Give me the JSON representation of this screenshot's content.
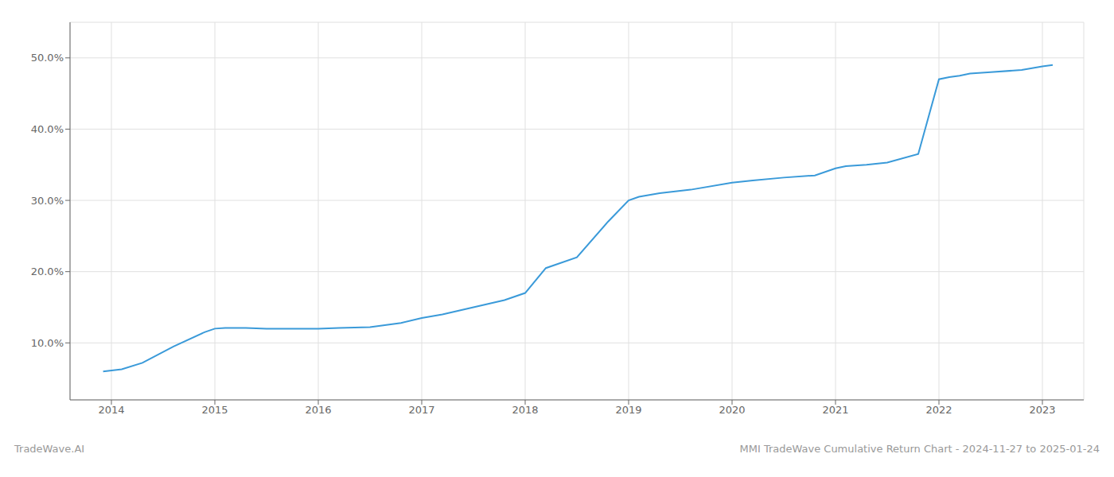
{
  "chart_data": {
    "type": "line",
    "x": [
      2013.92,
      2014.1,
      2014.3,
      2014.6,
      2014.9,
      2015.0,
      2015.1,
      2015.3,
      2015.5,
      2015.7,
      2016.0,
      2016.2,
      2016.5,
      2016.8,
      2017.0,
      2017.2,
      2017.5,
      2017.8,
      2018.0,
      2018.2,
      2018.5,
      2018.8,
      2019.0,
      2019.1,
      2019.3,
      2019.6,
      2020.0,
      2020.2,
      2020.5,
      2020.8,
      2021.0,
      2021.1,
      2021.3,
      2021.5,
      2021.8,
      2022.0,
      2022.1,
      2022.2,
      2022.3,
      2022.5,
      2022.8,
      2023.0,
      2023.1
    ],
    "values": [
      6.0,
      6.3,
      7.2,
      9.5,
      11.5,
      12.0,
      12.1,
      12.1,
      12.0,
      12.0,
      12.0,
      12.1,
      12.2,
      12.8,
      13.5,
      14.0,
      15.0,
      16.0,
      17.0,
      20.5,
      22.0,
      27.0,
      30.0,
      30.5,
      31.0,
      31.5,
      32.5,
      32.8,
      33.2,
      33.5,
      34.5,
      34.8,
      35.0,
      35.3,
      36.5,
      47.0,
      47.3,
      47.5,
      47.8,
      48.0,
      48.3,
      48.8,
      49.0
    ],
    "color": "#3a9ad9",
    "xlim": [
      2013.6,
      2023.4
    ],
    "ylim": [
      2.0,
      55.0
    ],
    "xticks": [
      2014,
      2015,
      2016,
      2017,
      2018,
      2019,
      2020,
      2021,
      2022,
      2023
    ],
    "yticks": [
      {
        "value": 10.0,
        "label": "10.0%"
      },
      {
        "value": 20.0,
        "label": "20.0%"
      },
      {
        "value": 30.0,
        "label": "30.0%"
      },
      {
        "value": 40.0,
        "label": "40.0%"
      },
      {
        "value": 50.0,
        "label": "50.0%"
      }
    ],
    "grid": true,
    "annotations": [
      "TradeWave.AI",
      "MMI TradeWave Cumulative Return Chart - 2024-11-27 to 2025-01-24"
    ]
  }
}
